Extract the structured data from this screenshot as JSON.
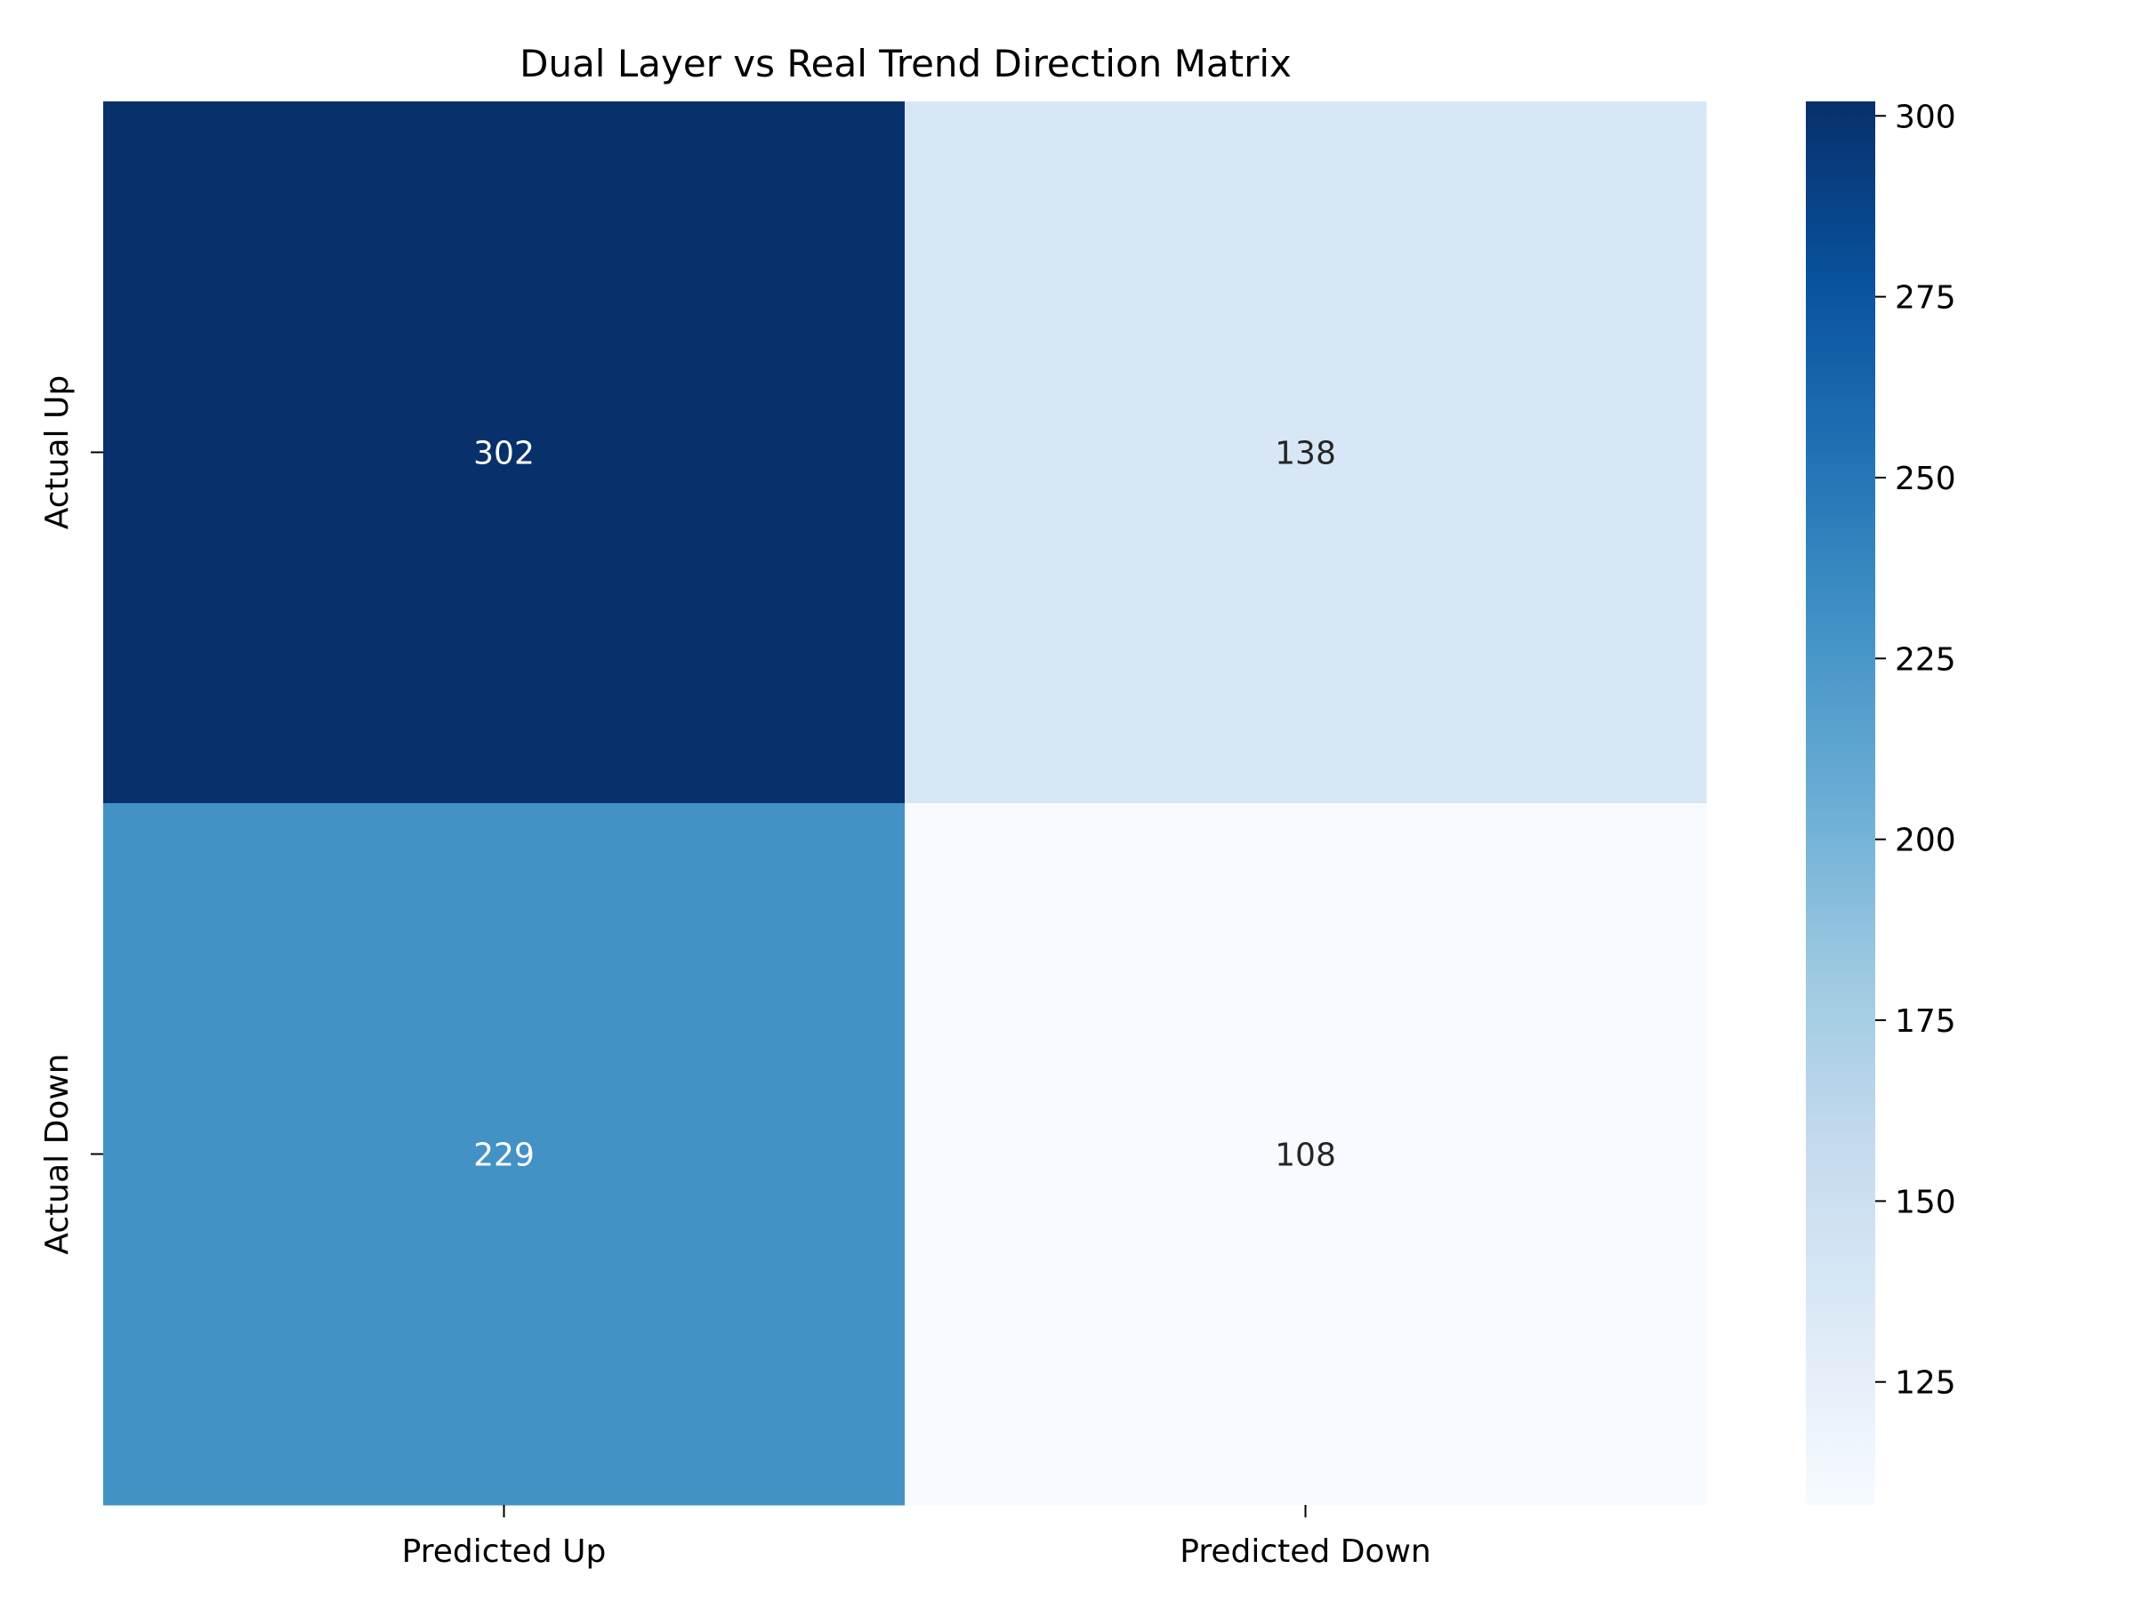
{
  "chart_data": {
    "type": "heatmap",
    "title": "Dual Layer vs Real Trend Direction Matrix",
    "x_categories": [
      "Predicted Up",
      "Predicted Down"
    ],
    "y_categories": [
      "Actual Up",
      "Actual Down"
    ],
    "values": [
      [
        302,
        138
      ],
      [
        229,
        108
      ]
    ],
    "colormap": "Blues",
    "colorbar": {
      "range": [
        108,
        302
      ],
      "ticks": [
        125,
        150,
        175,
        200,
        225,
        250,
        275,
        300
      ]
    },
    "annotated": true,
    "grid": false
  }
}
